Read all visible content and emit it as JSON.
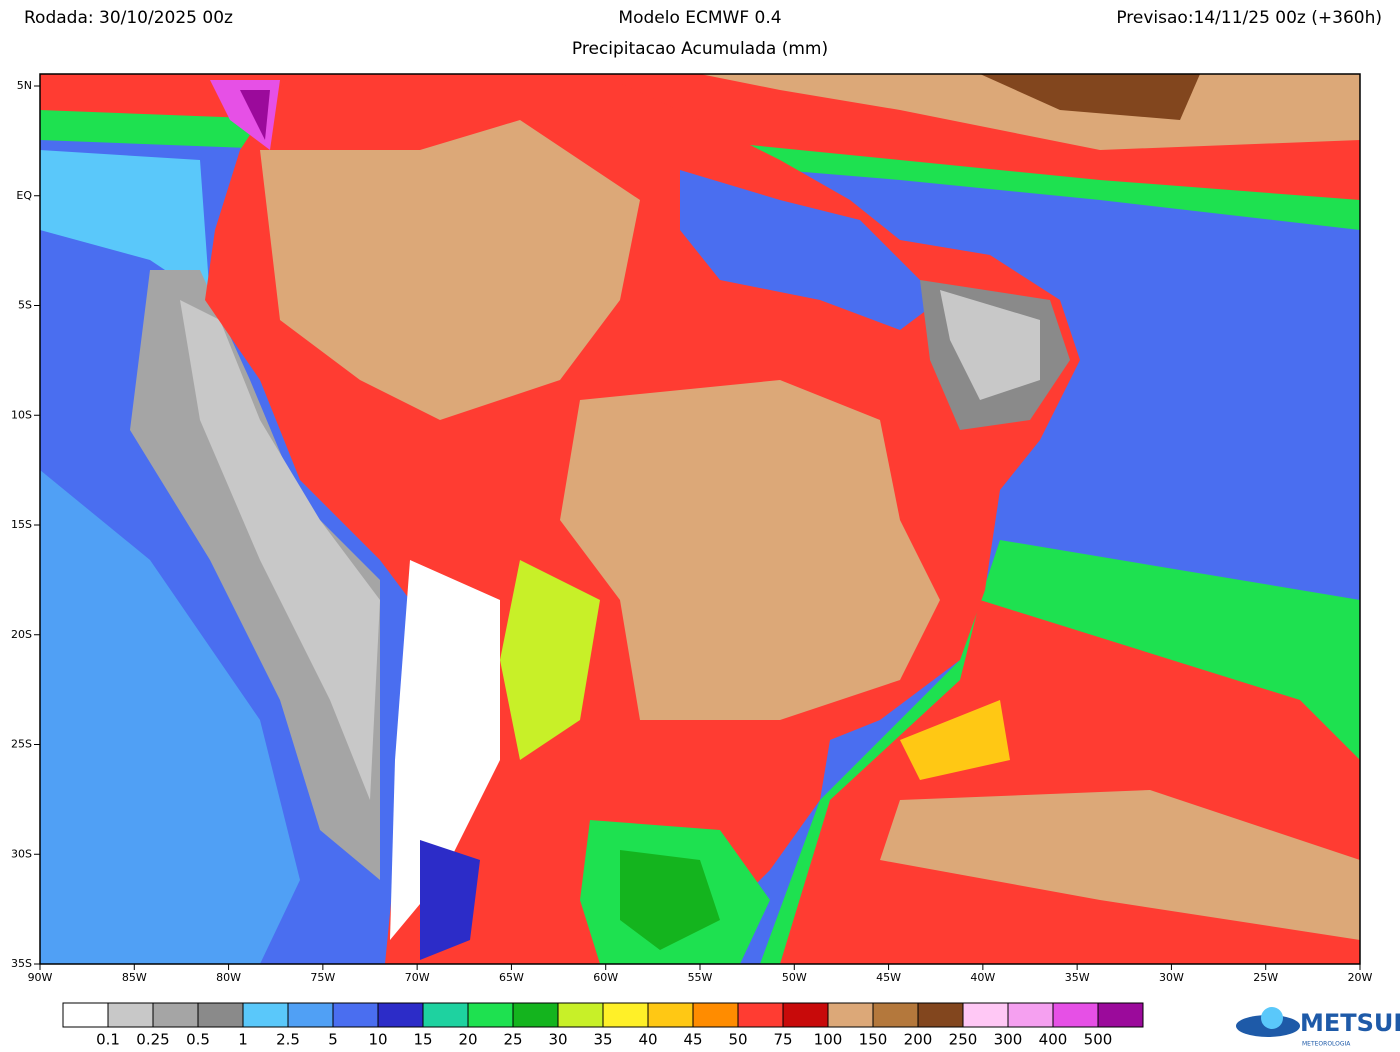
{
  "header": {
    "left": "Rodada: 30/10/2025 00z",
    "center": "Modelo ECMWF 0.4",
    "right": "Previsao:14/11/25 00z (+360h)",
    "subtitle": "Precipitacao Acumulada (mm)"
  },
  "map": {
    "lat_labels": [
      "5N",
      "EQ",
      "5S",
      "10S",
      "15S",
      "20S",
      "25S",
      "30S",
      "35S"
    ],
    "lon_labels": [
      "90W",
      "85W",
      "80W",
      "75W",
      "70W",
      "65W",
      "60W",
      "55W",
      "50W",
      "45W",
      "40W",
      "35W",
      "30W",
      "25W",
      "20W"
    ]
  },
  "legend": {
    "colors": [
      "#ffffff",
      "#c8c8c8",
      "#a5a5a5",
      "#8a8a8a",
      "#5ac8fa",
      "#50a0f5",
      "#4a6ef0",
      "#2c2cc8",
      "#1ed2a0",
      "#1ee150",
      "#14b41e",
      "#c8f028",
      "#fff028",
      "#ffc814",
      "#ff8c00",
      "#ff3c32",
      "#c80a0a",
      "#dca878",
      "#b4783c",
      "#82461e",
      "#ffc8f5",
      "#f5a0f0",
      "#e650e6",
      "#9b0a9b"
    ],
    "labels": [
      "0.1",
      "0.25",
      "0.5",
      "1",
      "2.5",
      "5",
      "10",
      "15",
      "20",
      "25",
      "30",
      "35",
      "40",
      "45",
      "50",
      "75",
      "100",
      "150",
      "200",
      "250",
      "300",
      "400",
      "500"
    ]
  },
  "logo": {
    "name": "METSUL",
    "tagline": "METEOROLOGIA"
  }
}
